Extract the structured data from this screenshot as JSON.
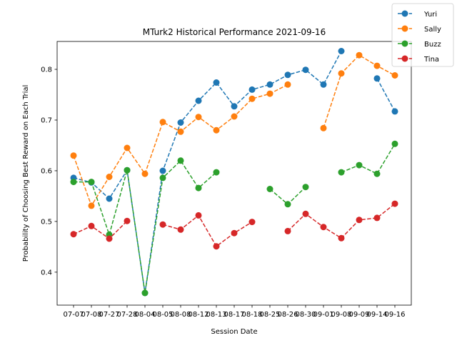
{
  "chart_data": {
    "type": "line",
    "title": "MTurk2 Historical Performance 2021-09-16",
    "xlabel": "Session Date",
    "ylabel": "Probability of Choosing Best Reward on Each Trial",
    "categories": [
      "07-07",
      "07-08",
      "07-27",
      "07-28",
      "08-04",
      "08-05",
      "08-08",
      "08-12",
      "08-13",
      "08-17",
      "08-18",
      "08-25",
      "08-26",
      "08-30",
      "09-01",
      "09-08",
      "09-09",
      "09-14",
      "09-16"
    ],
    "ylim": [
      0.335,
      0.855
    ],
    "yticks": [
      0.4,
      0.5,
      0.6,
      0.7,
      0.8
    ],
    "grid": false,
    "legend_position": "top-right",
    "series": [
      {
        "name": "Yuri",
        "color": "#1f77b4",
        "values": [
          0.586,
          0.577,
          0.545,
          0.601,
          0.359,
          0.6,
          0.695,
          0.738,
          0.774,
          0.727,
          0.76,
          0.77,
          0.789,
          0.799,
          0.77,
          0.836,
          null,
          0.782,
          0.717
        ]
      },
      {
        "name": "Sally",
        "color": "#ff7f0e",
        "values": [
          0.63,
          0.531,
          0.588,
          0.645,
          0.594,
          0.696,
          0.677,
          0.706,
          0.68,
          0.707,
          0.742,
          0.752,
          0.77,
          null,
          0.684,
          0.792,
          0.828,
          0.807,
          0.788
        ]
      },
      {
        "name": "Buzz",
        "color": "#2ca02c",
        "values": [
          0.578,
          0.578,
          0.474,
          0.601,
          0.359,
          0.586,
          0.62,
          0.566,
          0.597,
          null,
          null,
          0.564,
          0.534,
          0.568,
          null,
          0.597,
          0.611,
          0.594,
          0.653
        ]
      },
      {
        "name": "Tina",
        "color": "#d62728",
        "values": [
          0.475,
          0.491,
          0.466,
          0.501,
          null,
          0.494,
          0.484,
          0.512,
          0.451,
          0.477,
          0.499,
          null,
          0.481,
          0.515,
          0.489,
          0.467,
          0.503,
          0.507,
          0.535
        ]
      }
    ]
  }
}
